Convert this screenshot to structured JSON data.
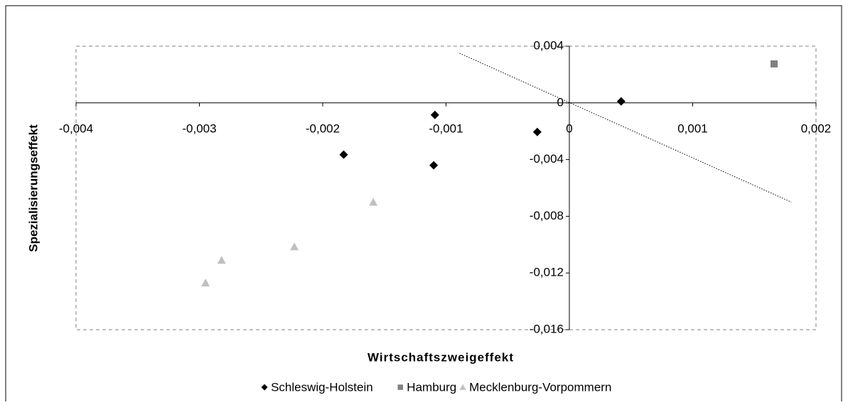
{
  "chart_data": {
    "type": "scatter",
    "x_label": "Wirtschaftszweigeffekt",
    "y_label": "Spezialisierungseffekt",
    "xlim": [
      -0.004,
      0.002
    ],
    "ylim": [
      -0.016,
      0.004
    ],
    "xticks": [
      {
        "value": -0.004,
        "label": "-0,004"
      },
      {
        "value": -0.003,
        "label": "-0,003"
      },
      {
        "value": -0.002,
        "label": "-0,002"
      },
      {
        "value": -0.001,
        "label": "-0,001"
      },
      0,
      {
        "value": 0.001,
        "label": "0,001"
      },
      {
        "value": 0.002,
        "label": "0,002"
      }
    ],
    "yticks": [
      {
        "value": 0.004,
        "label": "0,004"
      },
      0,
      {
        "value": -0.004,
        "label": "-0,004"
      },
      {
        "value": -0.008,
        "label": "-0,008"
      },
      {
        "value": -0.012,
        "label": "-0,012"
      },
      {
        "value": -0.016,
        "label": "-0,016"
      }
    ],
    "legend": "bottom",
    "series": [
      {
        "name": "Schleswig-Holstein",
        "color": "#000000",
        "marker": "diamond",
        "x": [
          -0.00183,
          -0.00109,
          -0.0011,
          -0.00026,
          0.00042
        ],
        "values": [
          -0.00365,
          -0.00085,
          -0.0044,
          -0.00205,
          0.0001
        ]
      },
      {
        "name": "Hamburg",
        "color": "#808080",
        "marker": "square",
        "x": [
          0.00166
        ],
        "values": [
          0.00275
        ]
      },
      {
        "name": "Mecklenburg-Vorpommern",
        "color": "#c0c0c0",
        "marker": "triangle",
        "x": [
          -0.00295,
          -0.00282,
          -0.00223,
          -0.00159
        ],
        "values": [
          -0.0127,
          -0.0111,
          -0.01015,
          -0.007
        ]
      }
    ],
    "trendline": {
      "x": [
        -0.00089,
        0.0018
      ],
      "values": [
        0.0035,
        -0.007
      ]
    }
  }
}
